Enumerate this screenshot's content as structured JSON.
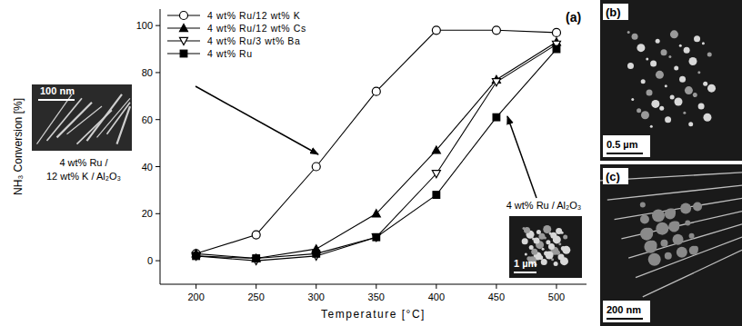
{
  "chart_data": {
    "type": "line",
    "panel_label": "(a)",
    "x_label": "Temperature [°C]",
    "y_label": "NH₃ Conversion [%]",
    "x": [
      200,
      250,
      300,
      350,
      400,
      450,
      500
    ],
    "xlim": [
      170,
      525
    ],
    "xticks": [
      200,
      250,
      300,
      350,
      400,
      450,
      500
    ],
    "ylim": [
      -10,
      107
    ],
    "yticks": [
      0,
      20,
      40,
      60,
      80,
      100
    ],
    "grid": false,
    "legend": "upper left",
    "series": [
      {
        "name": "4 wt% Ru/12 wt% K",
        "color": "#000000",
        "marker": "circle-open",
        "line_style": "solid",
        "values": [
          3,
          11,
          40,
          72,
          98,
          98,
          97
        ]
      },
      {
        "name": "4 wt% Ru/12 wt% Cs",
        "color": "#000000",
        "marker": "triangle",
        "line_style": "solid",
        "values": [
          3,
          1,
          5,
          20,
          47,
          77,
          93
        ]
      },
      {
        "name": "4 wt% Ru/3 wt% Ba",
        "color": "#000000",
        "marker": "triangle-down-open",
        "line_style": "solid",
        "values": [
          2,
          0,
          2,
          10,
          37,
          76,
          92
        ]
      },
      {
        "name": "4 wt% Ru",
        "color": "#000000",
        "marker": "square",
        "line_style": "solid",
        "values": [
          2,
          1,
          3,
          10,
          28,
          61,
          90
        ]
      }
    ],
    "insets": [
      {
        "scale_bar": "100 nm",
        "caption": [
          "4 wt% Ru /",
          "12 wt% K / Al₂O₃"
        ]
      },
      {
        "scale_bar": "1 µm",
        "caption": [
          "4 wt% Ru / Al₂O₃"
        ]
      }
    ],
    "panels": [
      {
        "label": "(b)",
        "scale_bar": "0.5 µm"
      },
      {
        "label": "(c)",
        "scale_bar": "200 nm"
      }
    ]
  }
}
